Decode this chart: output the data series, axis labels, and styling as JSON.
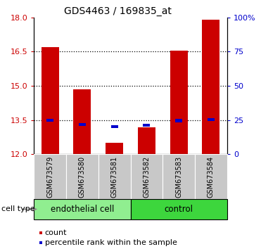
{
  "title": "GDS4463 / 169835_at",
  "samples": [
    "GSM673579",
    "GSM673580",
    "GSM673581",
    "GSM673582",
    "GSM673583",
    "GSM673584"
  ],
  "red_values": [
    16.7,
    14.85,
    12.5,
    13.2,
    16.55,
    17.9
  ],
  "blue_values": [
    13.5,
    13.32,
    13.22,
    13.27,
    13.48,
    13.52
  ],
  "y_min": 12,
  "y_max": 18,
  "y_ticks_left": [
    12,
    13.5,
    15,
    16.5,
    18
  ],
  "y_ticks_right": [
    0,
    25,
    50,
    75,
    100
  ],
  "y_ticks_right_labels": [
    "0",
    "25",
    "50",
    "75",
    "100%"
  ],
  "dotted_lines": [
    13.5,
    15,
    16.5
  ],
  "groups": [
    {
      "label": "endothelial cell",
      "indices": [
        0,
        1,
        2
      ],
      "color": "#90EE90"
    },
    {
      "label": "control",
      "indices": [
        3,
        4,
        5
      ],
      "color": "#3DD63D"
    }
  ],
  "bar_width": 0.55,
  "red_color": "#cc0000",
  "blue_color": "#0000cc",
  "bar_bottom": 12,
  "grey_box_color": "#c8c8c8",
  "legend_items": [
    "count",
    "percentile rank within the sample"
  ],
  "cell_type_label": "cell type"
}
